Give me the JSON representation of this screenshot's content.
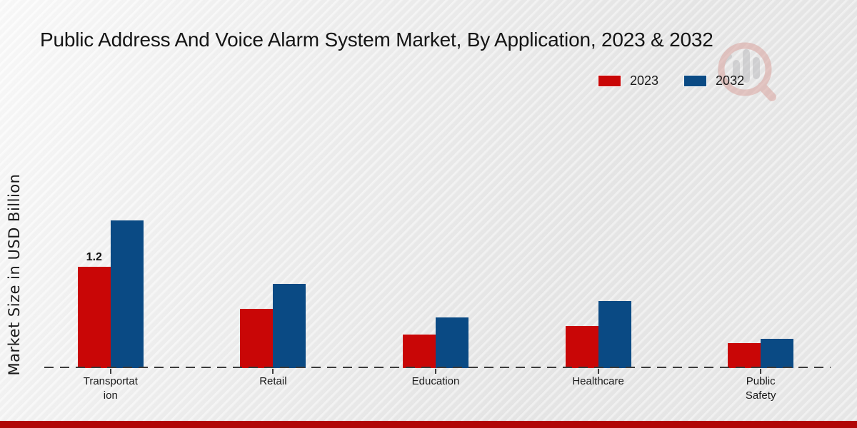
{
  "title": "Public Address And Voice Alarm System Market, By Application, 2023 & 2032",
  "y_axis_label": "Market Size in USD Billion",
  "legend": [
    {
      "label": "2023",
      "color": "#c90606"
    },
    {
      "label": "2032",
      "color": "#0a4a84"
    }
  ],
  "colors": {
    "series_2023": "#c90606",
    "series_2032": "#0a4a84",
    "baseline": "#3c3c3c",
    "footer_bar": "#b10707",
    "text": "#1a1a1a"
  },
  "watermark": {
    "icon": "magnifier-bar-chart-logo"
  },
  "chart_data": {
    "type": "bar",
    "title": "Public Address And Voice Alarm System Market, By Application, 2023 & 2032",
    "xlabel": "",
    "ylabel": "Market Size in USD Billion",
    "categories": [
      "Transportation",
      "Retail",
      "Education",
      "Healthcare",
      "Public Safety"
    ],
    "category_display": [
      "Transportat\nion",
      "Retail",
      "Education",
      "Healthcare",
      "Public\nSafety"
    ],
    "series": [
      {
        "name": "2023",
        "color": "#c90606",
        "values": [
          1.2,
          0.7,
          0.4,
          0.5,
          0.3
        ],
        "point_labels": [
          "1.2",
          "",
          "",
          "",
          ""
        ]
      },
      {
        "name": "2032",
        "color": "#0a4a84",
        "values": [
          1.75,
          1.0,
          0.6,
          0.8,
          0.35
        ],
        "point_labels": [
          "",
          "",
          "",
          "",
          ""
        ]
      }
    ],
    "grid": false,
    "y_axis_ticks_visible": false,
    "baseline_style": "dashed",
    "legend_position": "top-right"
  }
}
